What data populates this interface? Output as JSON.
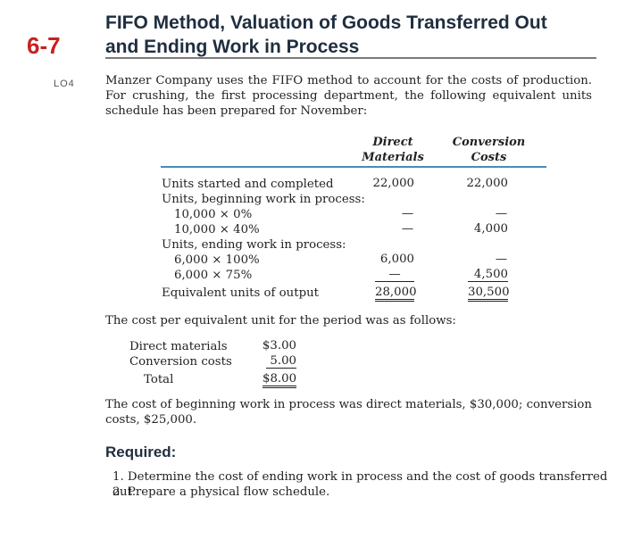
{
  "problem": {
    "number": "6-7",
    "title_line1": "FIFO Method, Valuation of Goods Transferred Out",
    "title_line2": "and Ending Work in Process",
    "lo_label": "LO4",
    "intro": "Manzer Company uses the FIFO method to account for the costs of production. For crushing, the first processing department, the following equivalent units schedule has been prepared for November:"
  },
  "schedule": {
    "col1_line1": "Direct",
    "col1_line2": "Materials",
    "col2_line1": "Conversion",
    "col2_line2": "Costs",
    "rows": [
      {
        "label": "Units started and completed",
        "dm": "22,000",
        "cc": "22,000"
      },
      {
        "label": "Units, beginning work in process:",
        "dm": "",
        "cc": ""
      },
      {
        "label": "10,000 × 0%",
        "dm": "—",
        "cc": "—"
      },
      {
        "label": "10,000 × 40%",
        "dm": "—",
        "cc": "4,000"
      },
      {
        "label": "Units, ending work in process:",
        "dm": "",
        "cc": ""
      },
      {
        "label": "6,000 × 100%",
        "dm": "6,000",
        "cc": "—"
      },
      {
        "label": "6,000 × 75%",
        "dm": "—",
        "cc": "4,500"
      },
      {
        "label": "Equivalent units of output",
        "dm": "28,000",
        "cc": "30,500"
      }
    ]
  },
  "cost_per_unit": {
    "intro": "The cost per equivalent unit for the period was as follows:",
    "rows": [
      {
        "label": "Direct materials",
        "value": "$3.00"
      },
      {
        "label": "Conversion costs",
        "value": "5.00"
      },
      {
        "label": "Total",
        "value": "$8.00"
      }
    ]
  },
  "beginning_cost": "The cost of beginning work in process was direct materials, $30,000; conversion costs, $25,000.",
  "required": {
    "heading": "Required:",
    "items": [
      "1. Determine the cost of ending work in process and the cost of goods transferred out.",
      "2. Prepare a physical flow schedule."
    ]
  },
  "colors": {
    "accent_red": "#c8201f",
    "rule_blue": "#4a8ab8",
    "title_navy": "#1f2e3f"
  }
}
